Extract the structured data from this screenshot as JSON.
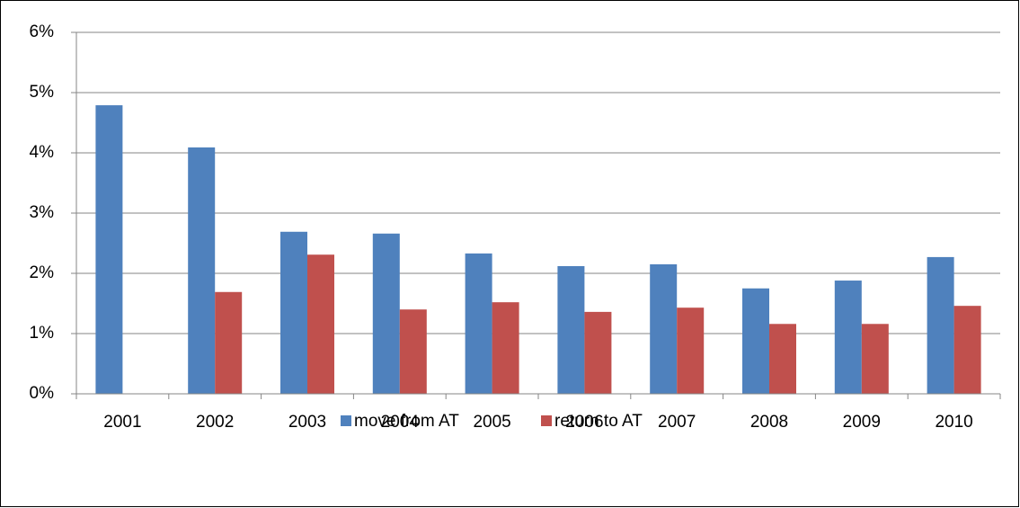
{
  "chart_data": {
    "type": "bar",
    "categories": [
      "2001",
      "2002",
      "2003",
      "2004",
      "2005",
      "2006",
      "2007",
      "2008",
      "2009",
      "2010"
    ],
    "series": [
      {
        "name": "move from AT",
        "color": "#4f81bd",
        "values": [
          4.79,
          4.09,
          2.69,
          2.66,
          2.33,
          2.12,
          2.15,
          1.75,
          1.88,
          2.27
        ]
      },
      {
        "name": "return to AT",
        "color": "#c0504d",
        "values": [
          null,
          1.69,
          2.31,
          1.4,
          1.52,
          1.36,
          1.43,
          1.16,
          1.16,
          1.46
        ]
      }
    ],
    "ylim": [
      0,
      6
    ],
    "yticks": [
      {
        "value": 0,
        "label": "0%"
      },
      {
        "value": 1,
        "label": "1%"
      },
      {
        "value": 2,
        "label": "2%"
      },
      {
        "value": 3,
        "label": "3%"
      },
      {
        "value": 4,
        "label": "4%"
      },
      {
        "value": 5,
        "label": "5%"
      },
      {
        "value": 6,
        "label": "6%"
      }
    ],
    "grid": true,
    "legend": "bottom"
  }
}
